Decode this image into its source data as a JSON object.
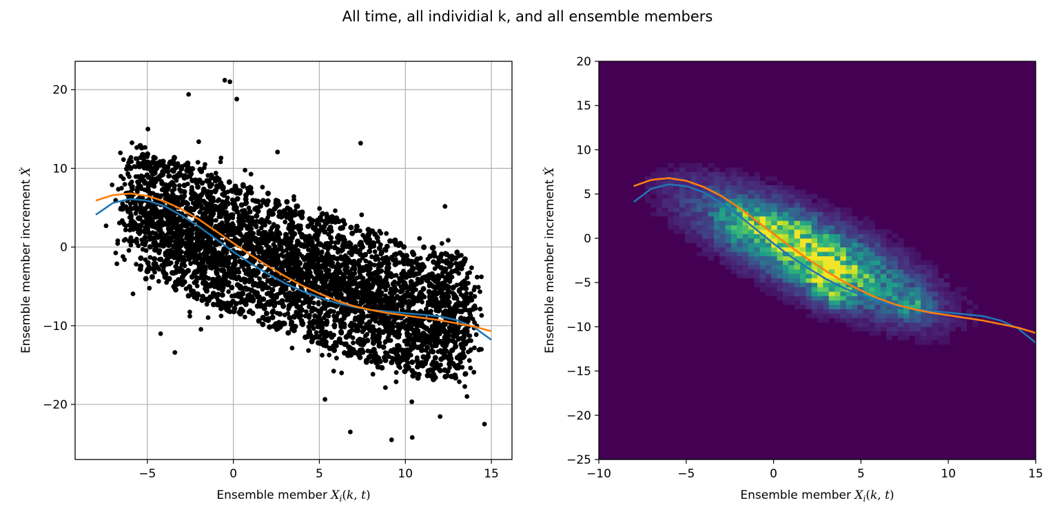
{
  "figure": {
    "suptitle": "All time, all individial k, and all ensemble members"
  },
  "chart_data": [
    {
      "type": "scatter",
      "title": "",
      "xlabel": "Ensemble member X_i(k, t)",
      "ylabel": "Ensemble member increment Ẋ",
      "xlim": [
        -9.2,
        16.2
      ],
      "ylim": [
        -27,
        23.6
      ],
      "xticks": [
        -5,
        0,
        5,
        10,
        15
      ],
      "yticks": [
        -20,
        -10,
        0,
        10,
        20
      ],
      "grid": true,
      "point_color": "#000000",
      "cloud": {
        "description_of_trend": "dense point cloud along negative slope",
        "center_line": [
          [
            -6,
            5
          ],
          [
            0,
            0
          ],
          [
            5,
            -4
          ],
          [
            10,
            -8
          ],
          [
            14,
            -9
          ]
        ],
        "spread_y": 7
      },
      "series": [
        {
          "color": "#1f77b4",
          "x": [
            -8,
            -7,
            -6,
            -5,
            -4,
            -3,
            -2,
            -1,
            0,
            1,
            2,
            3,
            4,
            5,
            6,
            7,
            8,
            9,
            10,
            11,
            12,
            13,
            14,
            15
          ],
          "y": [
            4.1,
            5.6,
            6.1,
            5.9,
            5.2,
            4.0,
            2.6,
            1.0,
            -0.6,
            -2.1,
            -3.4,
            -4.6,
            -5.6,
            -6.4,
            -7.1,
            -7.6,
            -8.0,
            -8.2,
            -8.4,
            -8.6,
            -8.8,
            -9.3,
            -10.2,
            -11.8
          ]
        },
        {
          "color": "#ff7f0e",
          "x": [
            -8,
            -7,
            -6,
            -5,
            -4,
            -3,
            -2,
            -1,
            0,
            1,
            2,
            3,
            4,
            5,
            6,
            7,
            8,
            9,
            10,
            11,
            12,
            13,
            14,
            15
          ],
          "y": [
            5.9,
            6.6,
            6.8,
            6.5,
            5.8,
            4.8,
            3.5,
            2.0,
            0.5,
            -1.0,
            -2.4,
            -3.7,
            -4.9,
            -5.9,
            -6.8,
            -7.5,
            -8.0,
            -8.4,
            -8.7,
            -9.0,
            -9.3,
            -9.7,
            -10.1,
            -10.7
          ]
        }
      ],
      "outliers": [
        [
          -2.6,
          19.4
        ],
        [
          -0.5,
          21.2
        ],
        [
          -0.2,
          21.0
        ],
        [
          0.2,
          18.8
        ],
        [
          7.4,
          13.2
        ],
        [
          14.6,
          -22.5
        ],
        [
          6.8,
          -23.5
        ],
        [
          -3.4,
          -13.4
        ],
        [
          -7.4,
          2.7
        ],
        [
          9.2,
          -24.5
        ],
        [
          10.4,
          -24.2
        ]
      ]
    },
    {
      "type": "heatmap",
      "title": "",
      "xlabel": "Ensemble member X_i(k, t)",
      "ylabel": "Ensemble member increment Ẋ",
      "xlim": [
        -10,
        15
      ],
      "ylim": [
        -25,
        20
      ],
      "xticks": [
        -10,
        -5,
        0,
        5,
        10,
        15
      ],
      "yticks": [
        -25,
        -20,
        -15,
        -10,
        -5,
        0,
        5,
        10,
        15,
        20
      ],
      "colormap": "viridis",
      "background": "#440154",
      "bins": {
        "nx": 76,
        "ny": 90
      },
      "hotspots": [
        [
          0.5,
          0.5
        ],
        [
          2.8,
          -4.0
        ],
        [
          3.5,
          -6.5
        ],
        [
          -1.5,
          2.0
        ],
        [
          8.0,
          -7.5
        ]
      ],
      "series": [
        {
          "color": "#1f77b4",
          "x": [
            -8,
            -7,
            -6,
            -5,
            -4,
            -3,
            -2,
            -1,
            0,
            1,
            2,
            3,
            4,
            5,
            6,
            7,
            8,
            9,
            10,
            11,
            12,
            13,
            14,
            15
          ],
          "y": [
            4.1,
            5.6,
            6.1,
            5.9,
            5.2,
            4.0,
            2.6,
            1.0,
            -0.6,
            -2.1,
            -3.4,
            -4.6,
            -5.6,
            -6.4,
            -7.1,
            -7.6,
            -8.0,
            -8.2,
            -8.4,
            -8.6,
            -8.8,
            -9.3,
            -10.2,
            -11.8
          ]
        },
        {
          "color": "#ff7f0e",
          "x": [
            -8,
            -7,
            -6,
            -5,
            -4,
            -3,
            -2,
            -1,
            0,
            1,
            2,
            3,
            4,
            5,
            6,
            7,
            8,
            9,
            10,
            11,
            12,
            13,
            14,
            15
          ],
          "y": [
            5.9,
            6.6,
            6.8,
            6.5,
            5.8,
            4.8,
            3.5,
            2.0,
            0.5,
            -1.0,
            -2.4,
            -3.7,
            -4.9,
            -5.9,
            -6.8,
            -7.5,
            -8.0,
            -8.4,
            -8.7,
            -9.0,
            -9.3,
            -9.7,
            -10.1,
            -10.7
          ]
        }
      ]
    }
  ]
}
